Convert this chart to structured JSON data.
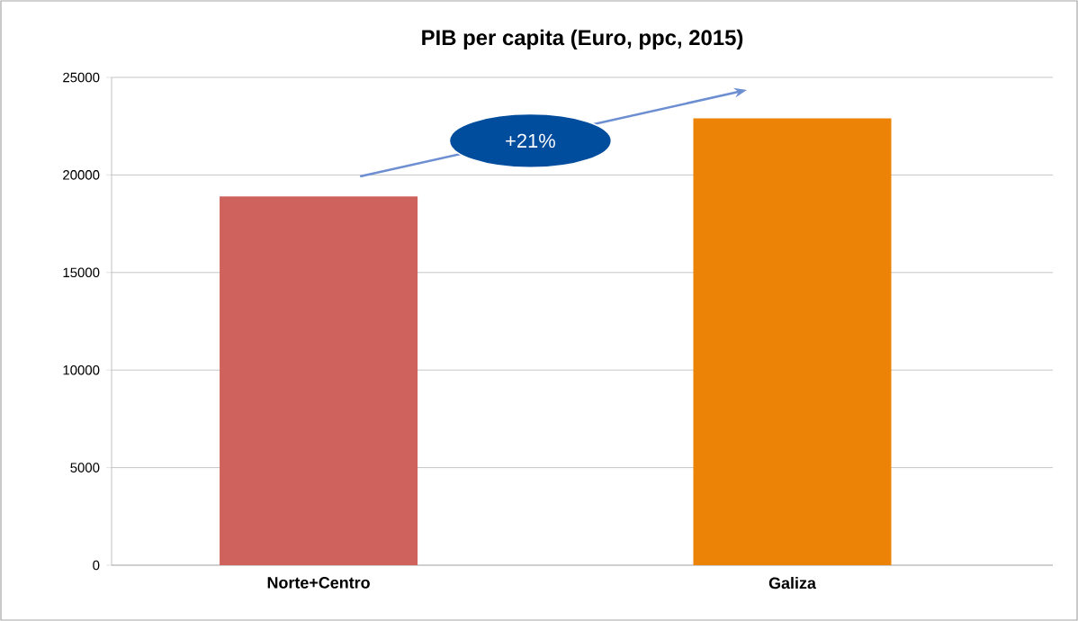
{
  "chart_data": {
    "type": "bar",
    "title": "PIB per capita (Euro, ppc, 2015)",
    "categories": [
      "Norte+Centro",
      "Galiza"
    ],
    "values": [
      18900,
      22900
    ],
    "colors": [
      "#cf625c",
      "#ec8306"
    ],
    "ylim": [
      0,
      25000
    ],
    "yticks": [
      0,
      5000,
      10000,
      15000,
      20000,
      25000
    ],
    "grid": "y",
    "annotations": [
      "+21%"
    ]
  }
}
